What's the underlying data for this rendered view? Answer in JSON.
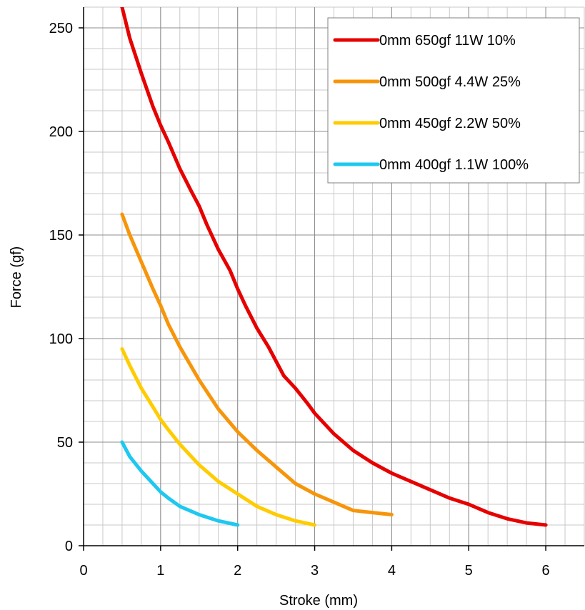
{
  "chart_data": {
    "type": "line",
    "xlabel": "Stroke (mm)",
    "ylabel": "Force (gf)",
    "xlim": [
      0,
      6.5
    ],
    "ylim": [
      0,
      260
    ],
    "x_ticks": [
      0,
      1,
      2,
      3,
      4,
      5,
      6
    ],
    "y_ticks": [
      0,
      50,
      100,
      150,
      200,
      250
    ],
    "x_minor_step": 0.25,
    "y_minor_step": 10,
    "grid": true,
    "legend_position": "top-right",
    "series": [
      {
        "name": "0mm 650gf 11W 10%",
        "color": "#e60000",
        "x": [
          0.5,
          0.6,
          0.75,
          0.9,
          1.0,
          1.1,
          1.25,
          1.4,
          1.5,
          1.6,
          1.75,
          1.9,
          2.0,
          2.1,
          2.25,
          2.4,
          2.5,
          2.6,
          2.75,
          2.9,
          3.0,
          3.25,
          3.5,
          3.75,
          4.0,
          4.25,
          4.5,
          4.75,
          5.0,
          5.25,
          5.5,
          5.75,
          6.0
        ],
        "y": [
          260,
          245,
          228,
          212,
          203,
          195,
          182,
          171,
          164,
          155,
          143,
          133,
          124,
          116,
          105,
          96,
          89,
          82,
          76,
          69,
          64,
          54,
          46,
          40,
          35,
          31,
          27,
          23,
          20,
          16,
          13,
          11,
          10
        ]
      },
      {
        "name": "0mm 500gf 4.4W 25%",
        "color": "#f7950a",
        "x": [
          0.5,
          0.6,
          0.75,
          0.9,
          1.0,
          1.1,
          1.25,
          1.5,
          1.75,
          2.0,
          2.25,
          2.5,
          2.75,
          3.0,
          3.25,
          3.5,
          3.75,
          4.0
        ],
        "y": [
          160,
          150,
          137,
          124,
          116,
          107,
          96,
          80,
          66,
          55,
          46,
          38,
          30,
          25,
          21,
          17,
          16,
          15
        ]
      },
      {
        "name": "0mm 450gf 2.2W 50%",
        "color": "#ffcc00",
        "x": [
          0.5,
          0.6,
          0.75,
          0.9,
          1.0,
          1.1,
          1.25,
          1.5,
          1.75,
          2.0,
          2.25,
          2.5,
          2.75,
          3.0
        ],
        "y": [
          95,
          87,
          76,
          67,
          61,
          56,
          49,
          39,
          31,
          25,
          19,
          15,
          12,
          10
        ]
      },
      {
        "name": "0mm 400gf 1.1W 100%",
        "color": "#1ec8f0",
        "x": [
          0.5,
          0.6,
          0.75,
          0.9,
          1.0,
          1.1,
          1.25,
          1.5,
          1.75,
          2.0
        ],
        "y": [
          50,
          43,
          36,
          30,
          26,
          23,
          19,
          15,
          12,
          10
        ]
      }
    ]
  }
}
